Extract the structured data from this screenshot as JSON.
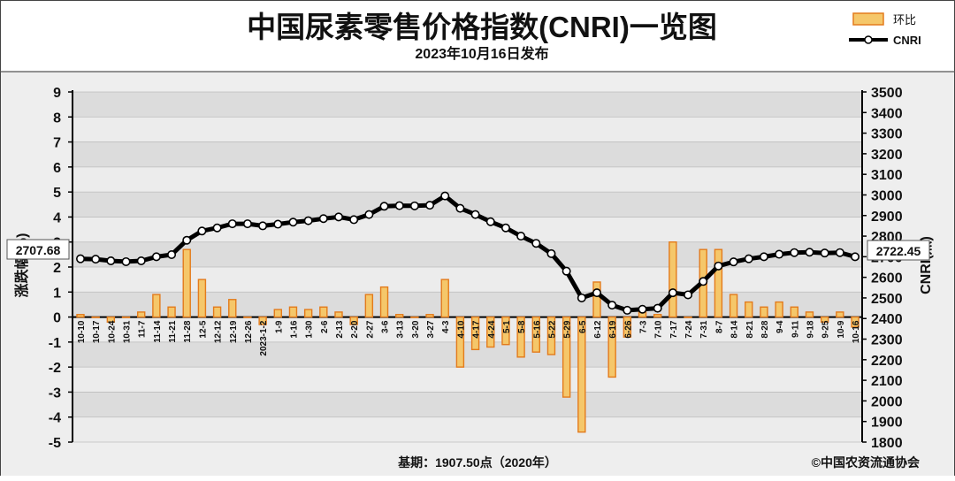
{
  "header": {
    "title": "中国尿素零售价格指数(CNRI)一览图",
    "subtitle": "2023年10月16日发布"
  },
  "legend": {
    "bar_label": "环比",
    "line_label": "CNRI"
  },
  "footer": {
    "base": "基期：1907.50点（2020年）",
    "copyright": "©中国农资流通协会"
  },
  "callouts": {
    "left_value": "2707.68",
    "right_value": "2722.45"
  },
  "colors": {
    "background": "#efefef",
    "plot_band": "#dcdcdc",
    "bar_fill": "#f5c76a",
    "bar_stroke": "#e37b1c",
    "line": "#000000"
  },
  "chart_data": {
    "type": "bar+line",
    "title": "中国尿素零售价格指数(CNRI)一览图",
    "subtitle": "2023年10月16日发布",
    "xlabel": "",
    "ylabel_left": "涨跌幅(%)",
    "ylabel_right": "CNRI(点)",
    "ylim_left": [
      -5,
      9
    ],
    "ylim_right": [
      1800,
      3500
    ],
    "yticks_left": [
      "9",
      "8",
      "7",
      "6",
      "5",
      "4",
      "3",
      "2",
      "1",
      "0",
      "-1",
      "-2",
      "-3",
      "-4",
      "-5"
    ],
    "yticks_right": [
      "3500",
      "3400",
      "3300",
      "3200",
      "3100",
      "3000",
      "2900",
      "2800",
      "2700",
      "2600",
      "2500",
      "2400",
      "2300",
      "2200",
      "2100",
      "2000",
      "1900",
      "1800"
    ],
    "legend_position": "top-right",
    "grid": true,
    "x_labels": [
      "10-10",
      "10-17",
      "10-24",
      "10-31",
      "11-7",
      "11-14",
      "11-21",
      "11-28",
      "12-5",
      "12-12",
      "12-19",
      "12-26",
      "2023-1-2",
      "1-9",
      "1-16",
      "1-30",
      "2-6",
      "2-13",
      "2-20",
      "2-27",
      "3-6",
      "3-13",
      "3-20",
      "3-27",
      "4-3",
      "4-10",
      "4-17",
      "4-24",
      "5-1",
      "5-8",
      "5-16",
      "5-22",
      "5-29",
      "6-5",
      "6-12",
      "6-19",
      "6-26",
      "7-3",
      "7-10",
      "7-17",
      "7-24",
      "7-31",
      "8-7",
      "8-14",
      "8-21",
      "8-28",
      "9-4",
      "9-11",
      "9-18",
      "9-25",
      "10-9",
      "10-16"
    ],
    "series": [
      {
        "name": "环比",
        "type": "bar",
        "axis": "left",
        "values": [
          0.1,
          0.0,
          -0.2,
          0.0,
          0.2,
          0.9,
          0.4,
          2.7,
          1.5,
          0.4,
          0.7,
          0.0,
          -0.3,
          0.3,
          0.4,
          0.3,
          0.4,
          0.2,
          -0.3,
          0.9,
          1.2,
          0.1,
          0.0,
          0.1,
          1.5,
          -2.0,
          -1.3,
          -1.2,
          -1.1,
          -1.6,
          -1.4,
          -1.5,
          -3.2,
          -4.6,
          1.4,
          -2.4,
          -0.8,
          0.2,
          0.1,
          3.0,
          0.0,
          2.7,
          2.7,
          0.9,
          0.6,
          0.4,
          0.6,
          0.4,
          0.2,
          -0.2,
          0.2,
          -0.4
        ]
      },
      {
        "name": "CNRI",
        "type": "line",
        "axis": "right",
        "values": [
          2690,
          2688,
          2680,
          2676,
          2680,
          2700,
          2710,
          2780,
          2825,
          2840,
          2860,
          2860,
          2850,
          2858,
          2868,
          2875,
          2885,
          2893,
          2880,
          2905,
          2945,
          2948,
          2947,
          2950,
          2995,
          2935,
          2905,
          2870,
          2840,
          2800,
          2765,
          2715,
          2630,
          2500,
          2525,
          2465,
          2440,
          2445,
          2450,
          2525,
          2515,
          2580,
          2655,
          2675,
          2690,
          2700,
          2712,
          2720,
          2722,
          2718,
          2720,
          2700
        ]
      }
    ]
  }
}
